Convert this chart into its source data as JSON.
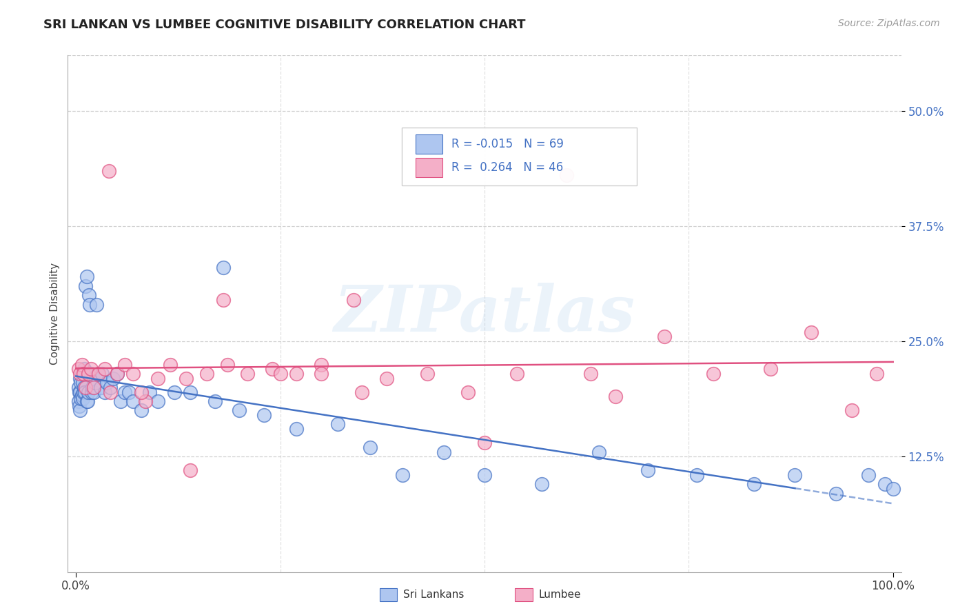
{
  "title": "SRI LANKAN VS LUMBEE COGNITIVE DISABILITY CORRELATION CHART",
  "source": "Source: ZipAtlas.com",
  "ylabel": "Cognitive Disability",
  "xlim": [
    -0.01,
    1.01
  ],
  "ylim": [
    0.0,
    0.56
  ],
  "xtick_positions": [
    0.0,
    1.0
  ],
  "xtick_labels": [
    "0.0%",
    "100.0%"
  ],
  "ytick_vals": [
    0.125,
    0.25,
    0.375,
    0.5
  ],
  "ytick_labels": [
    "12.5%",
    "25.0%",
    "37.5%",
    "50.0%"
  ],
  "legend_labels": [
    "Sri Lankans",
    "Lumbee"
  ],
  "sri_lankan_color": "#aec6f0",
  "lumbee_color": "#f4afc8",
  "sri_lankan_edge_color": "#4472c4",
  "lumbee_edge_color": "#e05080",
  "sri_lankan_line_color": "#4472c4",
  "lumbee_line_color": "#e05080",
  "legend_text_color": "#4472c4",
  "ytick_color": "#4472c4",
  "background_color": "#ffffff",
  "grid_color": "#cccccc",
  "watermark": "ZIPatlas",
  "sri_lankan_R": "-0.015",
  "sri_lankan_N": "69",
  "lumbee_R": "0.264",
  "lumbee_N": "46",
  "sri_lankan_x": [
    0.003,
    0.003,
    0.004,
    0.004,
    0.005,
    0.005,
    0.005,
    0.006,
    0.006,
    0.007,
    0.007,
    0.008,
    0.008,
    0.009,
    0.01,
    0.01,
    0.011,
    0.011,
    0.012,
    0.013,
    0.013,
    0.014,
    0.015,
    0.016,
    0.017,
    0.018,
    0.019,
    0.02,
    0.021,
    0.022,
    0.023,
    0.025,
    0.027,
    0.03,
    0.032,
    0.035,
    0.038,
    0.042,
    0.045,
    0.05,
    0.055,
    0.06,
    0.065,
    0.07,
    0.08,
    0.09,
    0.1,
    0.12,
    0.14,
    0.17,
    0.2,
    0.23,
    0.27,
    0.32,
    0.36,
    0.4,
    0.45,
    0.5,
    0.57,
    0.64,
    0.7,
    0.76,
    0.83,
    0.88,
    0.93,
    0.97,
    0.99,
    1.0,
    0.18
  ],
  "sri_lankan_y": [
    0.2,
    0.185,
    0.195,
    0.18,
    0.21,
    0.195,
    0.175,
    0.205,
    0.188,
    0.215,
    0.192,
    0.205,
    0.188,
    0.195,
    0.22,
    0.2,
    0.215,
    0.195,
    0.31,
    0.185,
    0.32,
    0.185,
    0.195,
    0.3,
    0.29,
    0.215,
    0.195,
    0.2,
    0.21,
    0.195,
    0.205,
    0.29,
    0.215,
    0.2,
    0.215,
    0.195,
    0.205,
    0.2,
    0.21,
    0.215,
    0.185,
    0.195,
    0.195,
    0.185,
    0.175,
    0.195,
    0.185,
    0.195,
    0.195,
    0.185,
    0.175,
    0.17,
    0.155,
    0.16,
    0.135,
    0.105,
    0.13,
    0.105,
    0.095,
    0.13,
    0.11,
    0.105,
    0.095,
    0.105,
    0.085,
    0.105,
    0.095,
    0.09,
    0.33
  ],
  "lumbee_x": [
    0.003,
    0.005,
    0.007,
    0.009,
    0.012,
    0.015,
    0.018,
    0.022,
    0.028,
    0.035,
    0.042,
    0.05,
    0.06,
    0.07,
    0.085,
    0.1,
    0.115,
    0.135,
    0.16,
    0.185,
    0.21,
    0.24,
    0.27,
    0.3,
    0.34,
    0.38,
    0.43,
    0.48,
    0.54,
    0.6,
    0.66,
    0.72,
    0.78,
    0.85,
    0.9,
    0.95,
    0.98,
    0.5,
    0.63,
    0.35,
    0.08,
    0.04,
    0.14,
    0.25,
    0.18,
    0.3
  ],
  "lumbee_y": [
    0.22,
    0.215,
    0.225,
    0.215,
    0.2,
    0.215,
    0.22,
    0.2,
    0.215,
    0.22,
    0.195,
    0.215,
    0.225,
    0.215,
    0.185,
    0.21,
    0.225,
    0.21,
    0.215,
    0.225,
    0.215,
    0.22,
    0.215,
    0.225,
    0.295,
    0.21,
    0.215,
    0.195,
    0.215,
    0.43,
    0.19,
    0.255,
    0.215,
    0.22,
    0.26,
    0.175,
    0.215,
    0.14,
    0.215,
    0.195,
    0.195,
    0.435,
    0.11,
    0.215,
    0.295,
    0.215
  ]
}
